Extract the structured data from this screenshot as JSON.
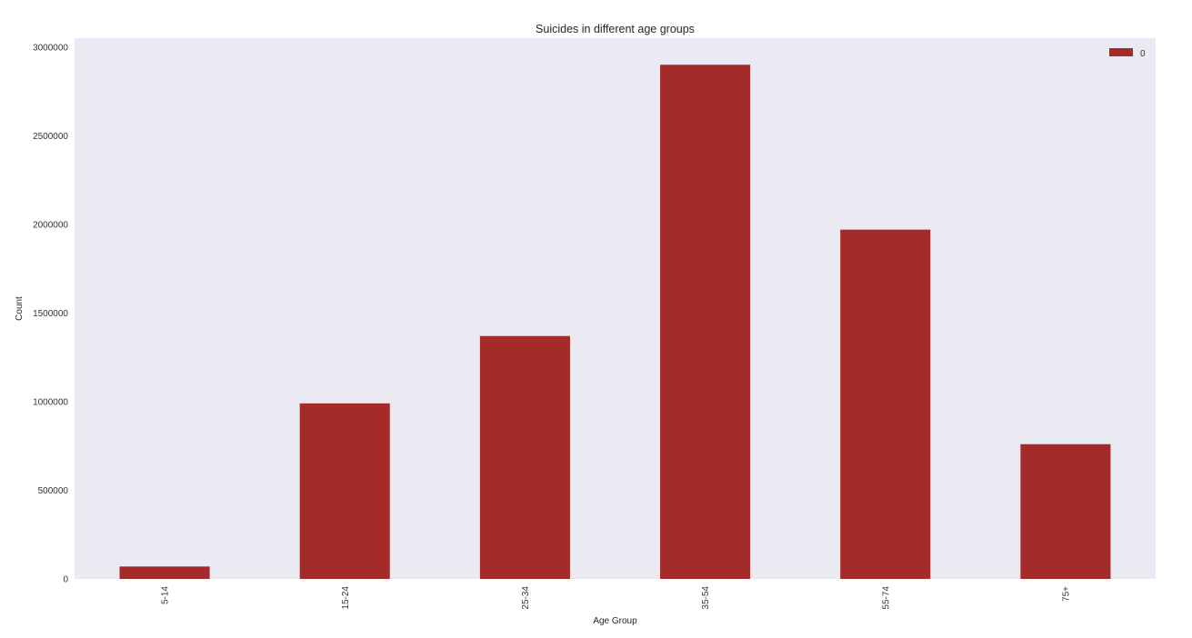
{
  "chart_data": {
    "type": "bar",
    "title": "Suicides in different age groups",
    "xlabel": "Age Group",
    "ylabel": "Count",
    "categories": [
      "5-14",
      "15-24",
      "25-34",
      "35-54",
      "55-74",
      "75+"
    ],
    "series": [
      {
        "name": "0",
        "values": [
          70000,
          990000,
          1370000,
          2900000,
          1970000,
          760000
        ]
      }
    ],
    "ylim": [
      0,
      3050000
    ],
    "yticks": [
      0,
      500000,
      1000000,
      1500000,
      2000000,
      2500000,
      3000000
    ],
    "ytick_labels": [
      "0",
      "500000",
      "1000000",
      "1500000",
      "2000000",
      "2500000",
      "3000000"
    ],
    "grid": false,
    "legend_position": "top-right",
    "colors": {
      "bar": "#a52a2a",
      "plot_background": "#eaeaf2",
      "figure_background": "#ffffff"
    }
  }
}
